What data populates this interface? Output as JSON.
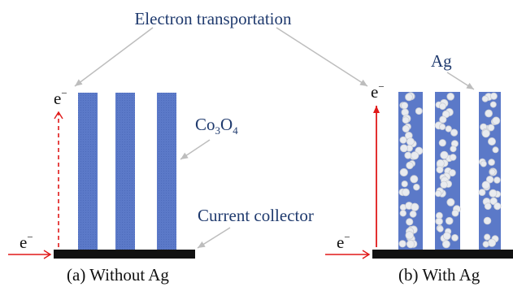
{
  "title": "Electron transportation",
  "labels": {
    "co3o4_main": "Co",
    "co3o4_sub1": "3",
    "co3o4_o": "O",
    "co3o4_sub2": "4",
    "ag": "Ag",
    "current_collector": "Current collector",
    "electron_base": "e",
    "electron_sup": "−"
  },
  "panels": [
    {
      "caption": "(a) Without Ag"
    },
    {
      "caption": "(b) With Ag"
    }
  ],
  "colors": {
    "text": "#1f3a6e",
    "rod": "#5b79c8",
    "ag_particle": "#e9ebef",
    "collector": "#111111",
    "electron_arrow": "#e01818",
    "pointer_arrow": "#bdbdbd"
  }
}
